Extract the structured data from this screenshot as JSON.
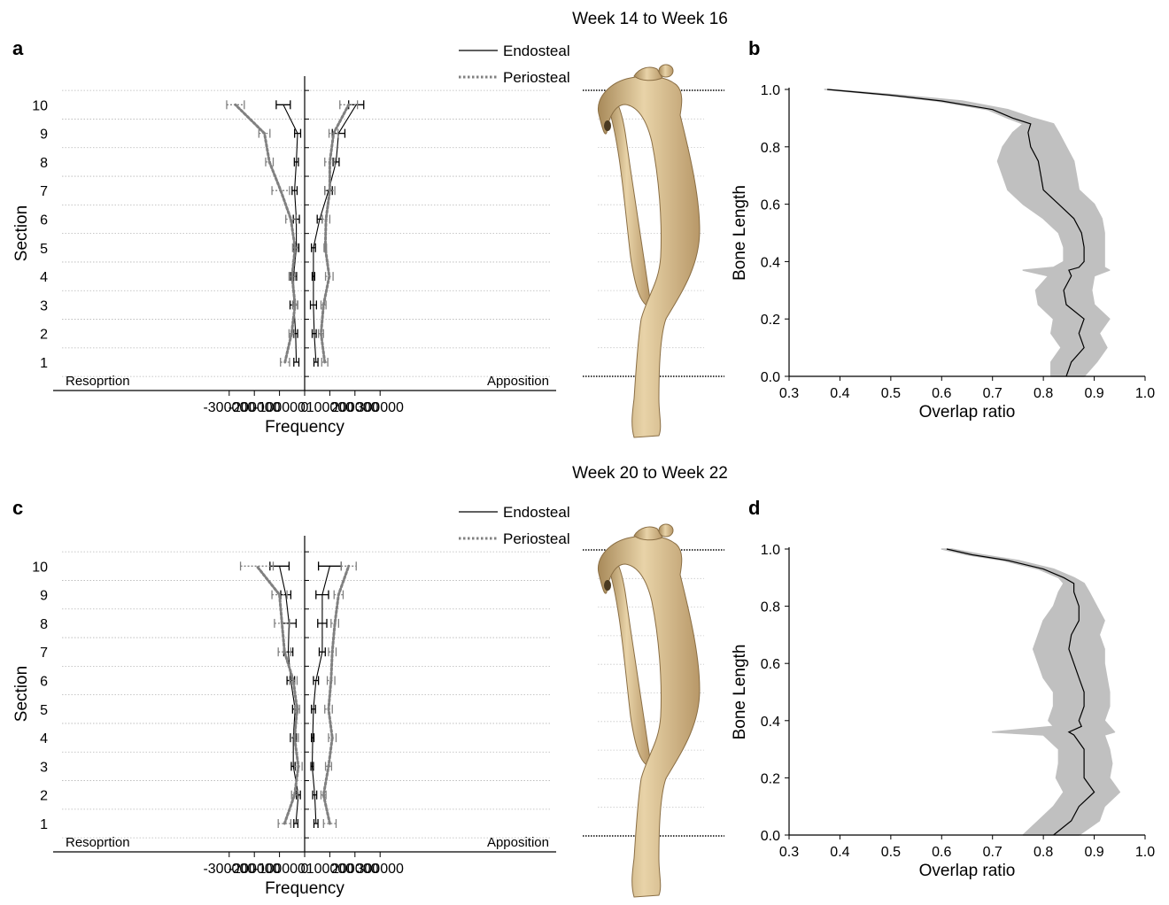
{
  "figure": {
    "period_titles": [
      "Week 14 to Week 16",
      "Week 20 to Week 22"
    ],
    "panel_letters": [
      "a",
      "b",
      "c",
      "d"
    ],
    "legend": {
      "endosteal": "Endosteal",
      "periosteal": "Periosteal"
    },
    "corner_labels": {
      "left": "Resoprtion",
      "right": "Apposition"
    },
    "colors": {
      "endosteal": "#000000",
      "periosteal": "#808080",
      "band": "#c0c0c0",
      "bone": "#d9bf93"
    },
    "bone_image": "tibia-bone-illustration"
  },
  "chart_data": [
    {
      "panel": "a",
      "type": "line",
      "orientation": "horizontal-profile",
      "xlabel": "Frequency",
      "ylabel": "Section",
      "xlim": [
        -320000,
        320000
      ],
      "x_ticks": [
        -300000,
        -200000,
        -100000,
        0,
        100000,
        200000,
        300000
      ],
      "x_tick_labels": [
        "-300000",
        "-200000",
        "-100000",
        "0",
        "100000",
        "200000",
        "300000"
      ],
      "sections": [
        1,
        2,
        3,
        4,
        5,
        6,
        7,
        8,
        9,
        10
      ],
      "section_labels": [
        "1",
        "2",
        "3",
        "4",
        "5",
        "6",
        "7",
        "8",
        "9",
        "10"
      ],
      "series": [
        {
          "name": "Endosteal",
          "side": "resorption",
          "style": "solid",
          "values": [
            -33000,
            -36000,
            -43000,
            -44000,
            -33000,
            -33000,
            -40000,
            -33000,
            -28000,
            -85000
          ],
          "errors": [
            10000,
            8000,
            15000,
            12000,
            10000,
            12000,
            10000,
            8000,
            12000,
            28000
          ]
        },
        {
          "name": "Periosteal",
          "side": "resorption",
          "style": "dotted",
          "values": [
            -78000,
            -52000,
            -38000,
            -50000,
            -38000,
            -55000,
            -95000,
            -140000,
            -160000,
            -275000
          ],
          "errors": [
            18000,
            10000,
            10000,
            12000,
            10000,
            20000,
            35000,
            15000,
            22000,
            35000
          ]
        },
        {
          "name": "Endosteal",
          "side": "apposition",
          "style": "solid",
          "values": [
            45000,
            38000,
            35000,
            35000,
            35000,
            60000,
            95000,
            125000,
            135000,
            205000
          ],
          "errors": [
            8000,
            8000,
            12000,
            5000,
            8000,
            10000,
            15000,
            12000,
            25000,
            30000
          ]
        },
        {
          "name": "Periosteal",
          "side": "apposition",
          "style": "dotted",
          "values": [
            80000,
            65000,
            75000,
            98000,
            82000,
            85000,
            100000,
            100000,
            115000,
            175000
          ],
          "errors": [
            12000,
            10000,
            10000,
            15000,
            5000,
            15000,
            20000,
            20000,
            18000,
            35000
          ]
        }
      ]
    },
    {
      "panel": "b",
      "type": "line",
      "xlabel": "Overlap ratio",
      "ylabel": "Bone Length",
      "xlim": [
        0.3,
        1.0
      ],
      "ylim": [
        0.0,
        1.0
      ],
      "x_ticks": [
        "0.3",
        "0.4",
        "0.5",
        "0.6",
        "0.7",
        "0.8",
        "0.9",
        "1.0"
      ],
      "y_ticks": [
        "0.0",
        "0.2",
        "0.4",
        "0.6",
        "0.8",
        "1.0"
      ],
      "series": [
        {
          "name": "mean",
          "band": "sd",
          "y": [
            0.0,
            0.05,
            0.1,
            0.15,
            0.2,
            0.25,
            0.3,
            0.35,
            0.37,
            0.38,
            0.4,
            0.45,
            0.5,
            0.55,
            0.6,
            0.65,
            0.7,
            0.75,
            0.8,
            0.85,
            0.88,
            0.9,
            0.93,
            0.96,
            0.98,
            1.0
          ],
          "x": [
            0.845,
            0.855,
            0.88,
            0.87,
            0.88,
            0.845,
            0.84,
            0.855,
            0.85,
            0.87,
            0.88,
            0.88,
            0.875,
            0.86,
            0.83,
            0.8,
            0.795,
            0.79,
            0.775,
            0.77,
            0.775,
            0.74,
            0.7,
            0.6,
            0.5,
            0.375
          ],
          "lower": [
            0.815,
            0.815,
            0.835,
            0.815,
            0.82,
            0.79,
            0.785,
            0.81,
            0.76,
            0.82,
            0.84,
            0.84,
            0.83,
            0.8,
            0.76,
            0.73,
            0.72,
            0.71,
            0.72,
            0.74,
            0.76,
            0.73,
            0.69,
            0.59,
            0.49,
            0.37
          ],
          "upper": [
            0.88,
            0.905,
            0.925,
            0.91,
            0.93,
            0.9,
            0.895,
            0.9,
            0.93,
            0.92,
            0.92,
            0.92,
            0.92,
            0.915,
            0.9,
            0.87,
            0.865,
            0.86,
            0.845,
            0.83,
            0.82,
            0.78,
            0.73,
            0.64,
            0.52,
            0.38
          ]
        }
      ]
    },
    {
      "panel": "c",
      "type": "line",
      "orientation": "horizontal-profile",
      "xlabel": "Frequency",
      "ylabel": "Section",
      "xlim": [
        -320000,
        320000
      ],
      "x_ticks": [
        -300000,
        -200000,
        -100000,
        0,
        100000,
        200000,
        300000
      ],
      "x_tick_labels": [
        "-300000",
        "-200000",
        "-100000",
        "0",
        "100000",
        "200000",
        "300000"
      ],
      "sections": [
        1,
        2,
        3,
        4,
        5,
        6,
        7,
        8,
        9,
        10
      ],
      "section_labels": [
        "1",
        "2",
        "3",
        "4",
        "5",
        "6",
        "7",
        "8",
        "9",
        "10"
      ],
      "series": [
        {
          "name": "Endosteal",
          "side": "resorption",
          "style": "solid",
          "values": [
            -35000,
            -25000,
            -45000,
            -45000,
            -38000,
            -55000,
            -65000,
            -62000,
            -75000,
            -100000
          ],
          "errors": [
            8000,
            8000,
            8000,
            12000,
            10000,
            15000,
            18000,
            28000,
            20000,
            38000
          ]
        },
        {
          "name": "Periosteal",
          "side": "resorption",
          "style": "dotted",
          "values": [
            -80000,
            -40000,
            -25000,
            -40000,
            -30000,
            -45000,
            -80000,
            -90000,
            -100000,
            -190000
          ],
          "errors": [
            25000,
            12000,
            15000,
            15000,
            10000,
            15000,
            25000,
            30000,
            30000,
            65000
          ]
        },
        {
          "name": "Endosteal",
          "side": "apposition",
          "style": "solid",
          "values": [
            45000,
            40000,
            30000,
            32000,
            35000,
            45000,
            70000,
            70000,
            70000,
            100000
          ],
          "errors": [
            8000,
            8000,
            5000,
            5000,
            8000,
            10000,
            12000,
            18000,
            25000,
            45000
          ]
        },
        {
          "name": "Periosteal",
          "side": "apposition",
          "style": "dotted",
          "values": [
            100000,
            75000,
            95000,
            110000,
            95000,
            105000,
            110000,
            120000,
            135000,
            175000
          ],
          "errors": [
            25000,
            10000,
            12000,
            15000,
            15000,
            15000,
            15000,
            15000,
            18000,
            30000
          ]
        }
      ]
    },
    {
      "panel": "d",
      "type": "line",
      "xlabel": "Overlap ratio",
      "ylabel": "Bone Length",
      "xlim": [
        0.3,
        1.0
      ],
      "ylim": [
        0.0,
        1.0
      ],
      "x_ticks": [
        "0.3",
        "0.4",
        "0.5",
        "0.6",
        "0.7",
        "0.8",
        "0.9",
        "1.0"
      ],
      "y_ticks": [
        "0.0",
        "0.2",
        "0.4",
        "0.6",
        "0.8",
        "1.0"
      ],
      "series": [
        {
          "name": "mean",
          "band": "sd",
          "y": [
            0.0,
            0.05,
            0.1,
            0.15,
            0.2,
            0.25,
            0.3,
            0.35,
            0.36,
            0.38,
            0.4,
            0.45,
            0.5,
            0.55,
            0.6,
            0.65,
            0.7,
            0.75,
            0.8,
            0.85,
            0.88,
            0.9,
            0.93,
            0.96,
            0.98,
            1.0
          ],
          "x": [
            0.82,
            0.855,
            0.87,
            0.9,
            0.88,
            0.88,
            0.88,
            0.86,
            0.85,
            0.875,
            0.87,
            0.88,
            0.88,
            0.87,
            0.86,
            0.85,
            0.855,
            0.87,
            0.87,
            0.86,
            0.86,
            0.84,
            0.8,
            0.73,
            0.66,
            0.61
          ],
          "lower": [
            0.76,
            0.79,
            0.82,
            0.84,
            0.825,
            0.83,
            0.83,
            0.8,
            0.7,
            0.82,
            0.81,
            0.82,
            0.82,
            0.8,
            0.79,
            0.78,
            0.79,
            0.8,
            0.82,
            0.83,
            0.84,
            0.83,
            0.79,
            0.72,
            0.65,
            0.6
          ],
          "upper": [
            0.87,
            0.91,
            0.92,
            0.95,
            0.93,
            0.935,
            0.93,
            0.92,
            0.94,
            0.93,
            0.92,
            0.93,
            0.93,
            0.925,
            0.92,
            0.92,
            0.91,
            0.92,
            0.905,
            0.89,
            0.88,
            0.86,
            0.82,
            0.75,
            0.68,
            0.62
          ]
        }
      ]
    }
  ]
}
